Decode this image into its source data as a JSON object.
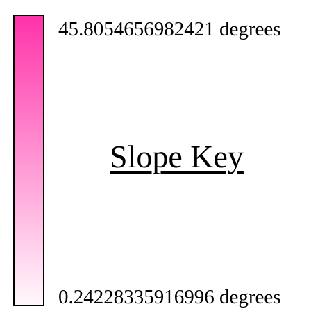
{
  "legend": {
    "title": "Slope Key",
    "max_label": "45.8054656982421 degrees",
    "min_label": "0.24228335916996 degrees",
    "max_value": 45.8054656982421,
    "min_value": 0.24228335916996,
    "unit": "degrees",
    "gradient": {
      "top_color": "#ff33aa",
      "bottom_color": "#fff8fc"
    }
  }
}
